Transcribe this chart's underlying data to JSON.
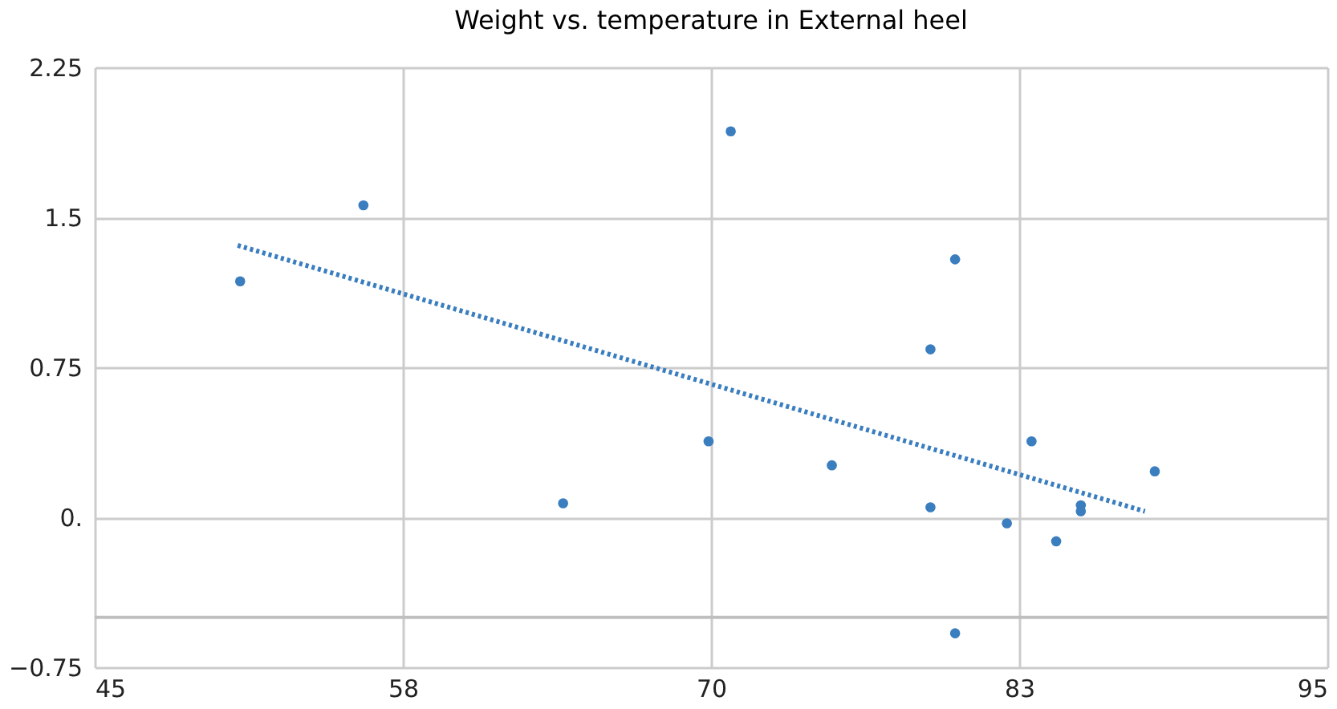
{
  "chart_data": {
    "type": "scatter",
    "title": "Weight vs. temperature in External heel",
    "x": [
      50.9,
      55.9,
      64.0,
      70.8,
      69.9,
      74.9,
      78.9,
      78.9,
      79.9,
      79.9,
      82.0,
      83.0,
      84.0,
      85.0,
      85.0,
      88.0
    ],
    "series": [
      {
        "color": "#3a7ebf",
        "marker": "circle",
        "values": [
          1.18,
          1.56,
          0.07,
          1.93,
          0.38,
          0.26,
          0.84,
          0.05,
          1.29,
          -0.58,
          -0.03,
          0.38,
          -0.12,
          0.06,
          0.03,
          0.23
        ]
      },
      {
        "type": "line",
        "color": "#3a7ebf",
        "line_style": "dotted",
        "x": [
          50.8,
          87.6
        ],
        "values": [
          1.36,
          0.03
        ]
      }
    ],
    "xlim": [
      45,
      95
    ],
    "xticks": [
      45,
      {
        "value": 57.5,
        "label": "58"
      },
      70,
      {
        "value": 82.5,
        "label": "83"
      },
      95
    ],
    "ylim": [
      -0.75,
      2.25
    ],
    "yticks": [
      {
        "value": -0.75,
        "label": "−0.75"
      },
      {
        "value": 0,
        "label": "0."
      },
      0.75,
      1.5,
      2.25
    ],
    "ref_lines": [
      {
        "axis": "y",
        "value": -0.5,
        "color": "#bfbfbf"
      }
    ],
    "grid": true
  }
}
